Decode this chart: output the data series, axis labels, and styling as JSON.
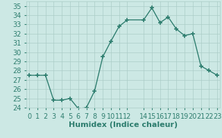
{
  "x": [
    0,
    1,
    2,
    3,
    4,
    5,
    6,
    7,
    8,
    9,
    10,
    11,
    12,
    14,
    15,
    16,
    17,
    18,
    19,
    20,
    21,
    22,
    23
  ],
  "y": [
    27.5,
    27.5,
    27.5,
    24.8,
    24.8,
    25.0,
    23.9,
    24.0,
    25.8,
    29.5,
    31.2,
    32.8,
    33.5,
    33.5,
    34.8,
    33.2,
    33.8,
    32.5,
    31.8,
    32.0,
    28.5,
    28.0,
    27.5
  ],
  "line_color": "#2d7d6e",
  "marker": "+",
  "marker_size": 4,
  "bg_color": "#cce8e4",
  "grid_color": "#aaccc6",
  "xlabel": "Humidex (Indice chaleur)",
  "ylim": [
    24,
    35.5
  ],
  "yticks": [
    24,
    25,
    26,
    27,
    28,
    29,
    30,
    31,
    32,
    33,
    34,
    35
  ],
  "xticks": [
    0,
    1,
    2,
    3,
    4,
    5,
    6,
    7,
    8,
    9,
    10,
    11,
    12,
    14,
    15,
    16,
    17,
    18,
    19,
    20,
    21,
    22,
    23
  ],
  "xlim": [
    -0.3,
    23.3
  ],
  "tick_color": "#2d7d6e",
  "label_color": "#2d7d6e",
  "xlabel_fontsize": 8,
  "tick_fontsize": 7
}
